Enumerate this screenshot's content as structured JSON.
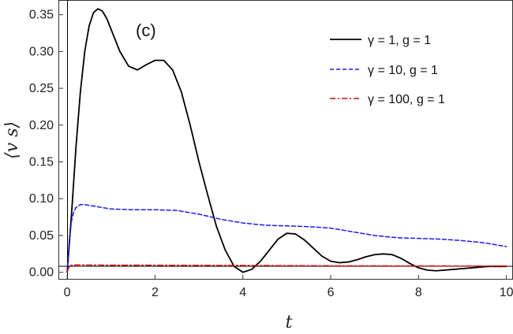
{
  "chart_data": {
    "type": "line",
    "panel_label": "(c)",
    "xlabel": "t",
    "ylabel": "⟨v s⟩",
    "xlim": [
      -0.2,
      10.15
    ],
    "ylim": [
      -0.01,
      0.37
    ],
    "x_ticks": [
      0,
      2,
      4,
      6,
      8,
      10
    ],
    "x_tick_labels": [
      "0",
      "2",
      "4",
      "6",
      "8",
      "10"
    ],
    "y_ticks": [
      0.0,
      0.05,
      0.1,
      0.15,
      0.2,
      0.25,
      0.3,
      0.35
    ],
    "y_tick_labels": [
      "0.00",
      "0.05",
      "0.10",
      "0.15",
      "0.20",
      "0.25",
      "0.30",
      "0.35"
    ],
    "grid": false,
    "legend_position": "top-right",
    "series": [
      {
        "name": "γ = 1, g = 1",
        "color": "#000000",
        "dash": "solid",
        "x": [
          0,
          0.1,
          0.2,
          0.3,
          0.4,
          0.5,
          0.6,
          0.7,
          0.8,
          0.9,
          1.0,
          1.2,
          1.4,
          1.6,
          1.8,
          2.0,
          2.2,
          2.4,
          2.6,
          2.8,
          3.0,
          3.2,
          3.4,
          3.6,
          3.8,
          4.0,
          4.2,
          4.4,
          4.6,
          4.8,
          5.0,
          5.2,
          5.4,
          5.6,
          5.8,
          6.0,
          6.2,
          6.4,
          6.6,
          6.8,
          7.0,
          7.2,
          7.4,
          7.6,
          7.8,
          8.0,
          8.2,
          8.4,
          8.6,
          8.8,
          9.0,
          9.2,
          9.4,
          9.6,
          9.8,
          10.0
        ],
        "y": [
          0,
          0.08,
          0.17,
          0.245,
          0.3,
          0.335,
          0.353,
          0.358,
          0.355,
          0.345,
          0.33,
          0.3,
          0.28,
          0.275,
          0.282,
          0.288,
          0.288,
          0.275,
          0.245,
          0.2,
          0.15,
          0.105,
          0.062,
          0.03,
          0.008,
          0.0,
          0.004,
          0.015,
          0.03,
          0.045,
          0.053,
          0.052,
          0.044,
          0.033,
          0.022,
          0.015,
          0.013,
          0.014,
          0.017,
          0.021,
          0.024,
          0.025,
          0.024,
          0.019,
          0.012,
          0.006,
          0.003,
          0.002,
          0.003,
          0.004,
          0.005,
          0.006,
          0.007,
          0.008,
          0.008,
          0.008
        ]
      },
      {
        "name": "γ = 10, g = 1",
        "color": "#1a1aff",
        "dash": "dashed",
        "x": [
          0,
          0.05,
          0.1,
          0.15,
          0.2,
          0.3,
          0.4,
          0.6,
          0.8,
          1.0,
          1.5,
          2.0,
          2.5,
          3.0,
          3.5,
          4.0,
          4.5,
          5.0,
          5.5,
          6.0,
          6.5,
          7.0,
          7.5,
          8.0,
          8.5,
          9.0,
          9.5,
          10.0
        ],
        "y": [
          0,
          0.045,
          0.07,
          0.082,
          0.088,
          0.092,
          0.092,
          0.09,
          0.088,
          0.086,
          0.085,
          0.085,
          0.084,
          0.079,
          0.072,
          0.067,
          0.064,
          0.063,
          0.062,
          0.06,
          0.055,
          0.05,
          0.047,
          0.046,
          0.045,
          0.043,
          0.04,
          0.035
        ]
      },
      {
        "name": "γ = 100, g = 1",
        "color": "#e60000",
        "dash": "dashdot",
        "x": [
          0,
          0.03,
          0.06,
          0.1,
          0.2,
          0.5,
          1.0,
          2.0,
          3.0,
          4.0,
          5.0,
          6.0,
          7.0,
          8.0,
          9.0,
          10.0
        ],
        "y": [
          0,
          0.006,
          0.0085,
          0.0095,
          0.01,
          0.0098,
          0.0097,
          0.0096,
          0.0094,
          0.0092,
          0.009,
          0.0088,
          0.0087,
          0.0086,
          0.0085,
          0.0084
        ]
      }
    ]
  }
}
